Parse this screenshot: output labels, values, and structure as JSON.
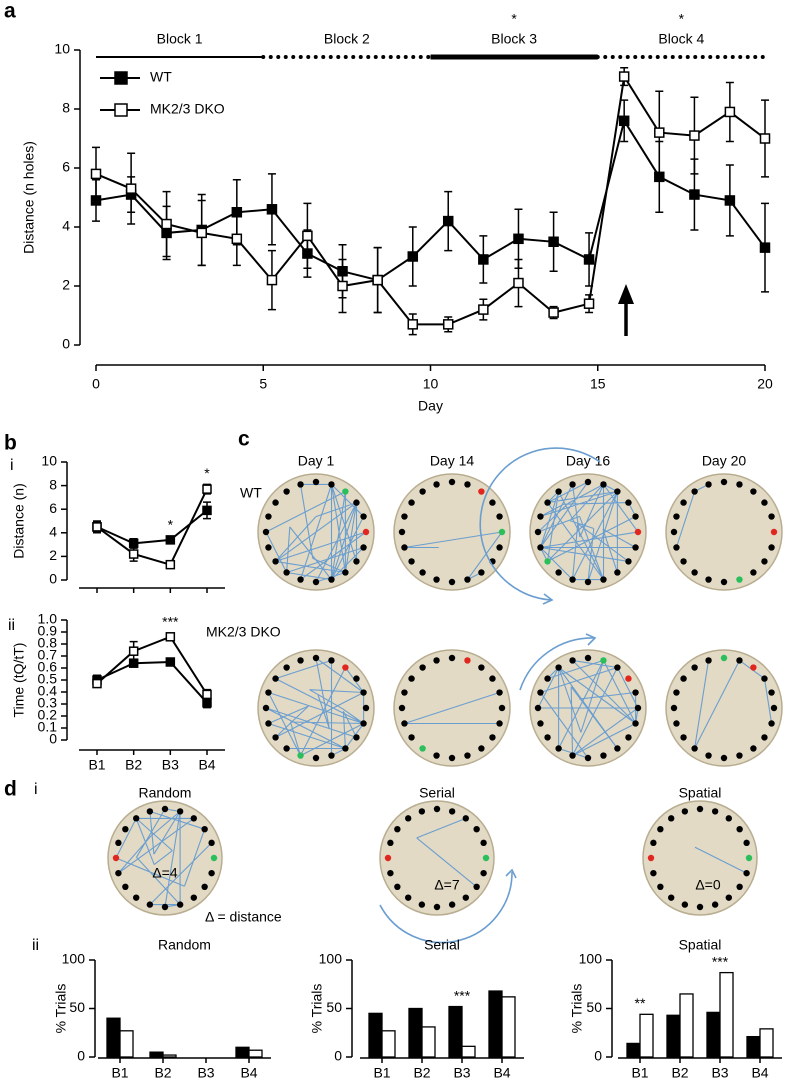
{
  "panel_labels": {
    "a": "a",
    "b": "b",
    "b_i": "i",
    "b_ii": "ii",
    "c": "c",
    "d": "d",
    "d_i": "i",
    "d_ii": "ii"
  },
  "panel_c": {
    "columns": [
      "Day 1",
      "Day 14",
      "Day 16",
      "Day 20"
    ],
    "rows": [
      "WT",
      "MK2/3 DKO"
    ]
  },
  "panel_d_i": {
    "titles": [
      "Random",
      "Serial",
      "Spatial"
    ],
    "deltas": [
      "Δ=4",
      "Δ=7",
      "Δ=0"
    ],
    "legend": "Δ = distance"
  },
  "chart_data": [
    {
      "type": "line",
      "x_label": "Day",
      "y_label": "Distance (n holes)",
      "x": [
        0,
        1.05,
        2.11,
        3.16,
        4.21,
        5.26,
        6.32,
        7.37,
        8.42,
        9.47,
        10.53,
        11.58,
        12.63,
        13.68,
        14.74,
        15.79,
        16.84,
        17.89,
        18.95,
        20
      ],
      "xlim": [
        0,
        20
      ],
      "xticks": [
        0,
        5,
        10,
        15,
        20
      ],
      "ylim": [
        0,
        10
      ],
      "yticks": [
        0,
        2,
        4,
        6,
        8,
        10
      ],
      "legend": "upper left",
      "series": [
        {
          "name": "WT",
          "color": "#000000",
          "values": [
            4.9,
            5.1,
            3.8,
            3.9,
            4.5,
            4.6,
            3.1,
            2.5,
            2.2,
            3.0,
            4.2,
            2.9,
            3.6,
            3.5,
            2.9,
            7.6,
            5.7,
            5.1,
            4.9,
            3.3
          ],
          "errors": [
            0.7,
            0.6,
            0.9,
            1.2,
            1.1,
            1.2,
            0.8,
            0.9,
            1.1,
            1.0,
            1.0,
            0.8,
            1.0,
            1.0,
            0.9,
            0.7,
            1.2,
            1.2,
            1.2,
            1.5
          ]
        },
        {
          "name": "MK2/3 DKO",
          "color": "#ffffff",
          "values": [
            5.8,
            5.3,
            4.1,
            3.8,
            3.6,
            2.2,
            3.7,
            2.0,
            2.2,
            0.7,
            0.7,
            1.2,
            2.1,
            1.1,
            1.4,
            9.1,
            7.2,
            7.1,
            7.9,
            7.0
          ],
          "errors": [
            0.9,
            1.2,
            1.1,
            1.1,
            0.9,
            1.0,
            1.1,
            0.9,
            1.1,
            0.35,
            0.25,
            0.35,
            0.8,
            0.2,
            0.3,
            0.3,
            1.4,
            1.3,
            1.0,
            1.3
          ]
        }
      ],
      "blocks": [
        {
          "label": "Block 1",
          "start": 0,
          "end": 5,
          "line": "solid"
        },
        {
          "label": "Block 2",
          "start": 5,
          "end": 10,
          "line": "dotted"
        },
        {
          "label": "Block 3",
          "start": 10,
          "end": 15,
          "line": "thick",
          "marker": "*"
        },
        {
          "label": "Block 4",
          "start": 15,
          "end": 20,
          "line": "dotted",
          "marker": "*"
        }
      ]
    },
    {
      "type": "line",
      "y_label": "Distance (n)",
      "categories": [
        null,
        null,
        null,
        null
      ],
      "ylim": [
        0,
        10
      ],
      "yticks": [
        0,
        2,
        4,
        6,
        8,
        10
      ],
      "series": [
        {
          "color": "#000000",
          "values": [
            4.5,
            3.1,
            3.4,
            5.9
          ],
          "errors": [
            0.4,
            0.4,
            0.3,
            0.7
          ]
        },
        {
          "color": "#ffffff",
          "values": [
            4.5,
            2.2,
            1.3,
            7.7
          ],
          "errors": [
            0.5,
            0.6,
            0.2,
            0.4
          ]
        }
      ],
      "annotations": [
        {
          "text": "*",
          "index": 2
        },
        {
          "text": "*",
          "index": 3
        }
      ]
    },
    {
      "type": "line",
      "y_label": "Time (tQ/tT)",
      "categories": [
        "B1",
        "B2",
        "B3",
        "B4"
      ],
      "ylim": [
        0,
        1
      ],
      "yticks": [
        0,
        0.1,
        0.2,
        0.3,
        0.4,
        0.5,
        0.6,
        0.7,
        0.8,
        0.9,
        {
          "value": 1,
          "label": "1.0"
        }
      ],
      "series": [
        {
          "color": "#000000",
          "values": [
            0.5,
            0.64,
            0.65,
            0.31
          ],
          "errors": [
            0.04,
            0.03,
            0.02,
            0.04
          ]
        },
        {
          "color": "#ffffff",
          "values": [
            0.47,
            0.74,
            0.86,
            0.38
          ],
          "errors": [
            0.03,
            0.08,
            0.03,
            0.04
          ]
        }
      ],
      "annotations": [
        {
          "text": "***",
          "index": 2
        }
      ]
    },
    {
      "type": "bar",
      "title": "Random",
      "y_label": "% Trials",
      "categories": [
        "B1",
        "B2",
        "B3",
        "B4"
      ],
      "ylim": [
        0,
        100
      ],
      "yticks": [
        0,
        50,
        100
      ],
      "series": [
        {
          "color": "#000000",
          "values": [
            40,
            5,
            0,
            10
          ]
        },
        {
          "color": "#ffffff",
          "values": [
            27,
            2,
            0,
            7
          ]
        }
      ]
    },
    {
      "type": "bar",
      "title": "Serial",
      "y_label": "% Trials",
      "categories": [
        "B1",
        "B2",
        "B3",
        "B4"
      ],
      "ylim": [
        0,
        100
      ],
      "yticks": [
        0,
        50,
        100
      ],
      "series": [
        {
          "color": "#000000",
          "values": [
            45,
            50,
            52,
            68
          ]
        },
        {
          "color": "#ffffff",
          "values": [
            27,
            31,
            11,
            62
          ]
        }
      ],
      "annotations": [
        {
          "text": "***",
          "index": 2
        }
      ]
    },
    {
      "type": "bar",
      "title": "Spatial",
      "y_label": "% Trials",
      "categories": [
        "B1",
        "B2",
        "B3",
        "B4"
      ],
      "ylim": [
        0,
        100
      ],
      "yticks": [
        0,
        50,
        100
      ],
      "series": [
        {
          "color": "#000000",
          "values": [
            14,
            43,
            46,
            21
          ]
        },
        {
          "color": "#ffffff",
          "values": [
            44,
            65,
            87,
            29
          ]
        }
      ],
      "annotations": [
        {
          "text": "**",
          "index": 0
        },
        {
          "text": "***",
          "index": 2
        }
      ]
    }
  ]
}
